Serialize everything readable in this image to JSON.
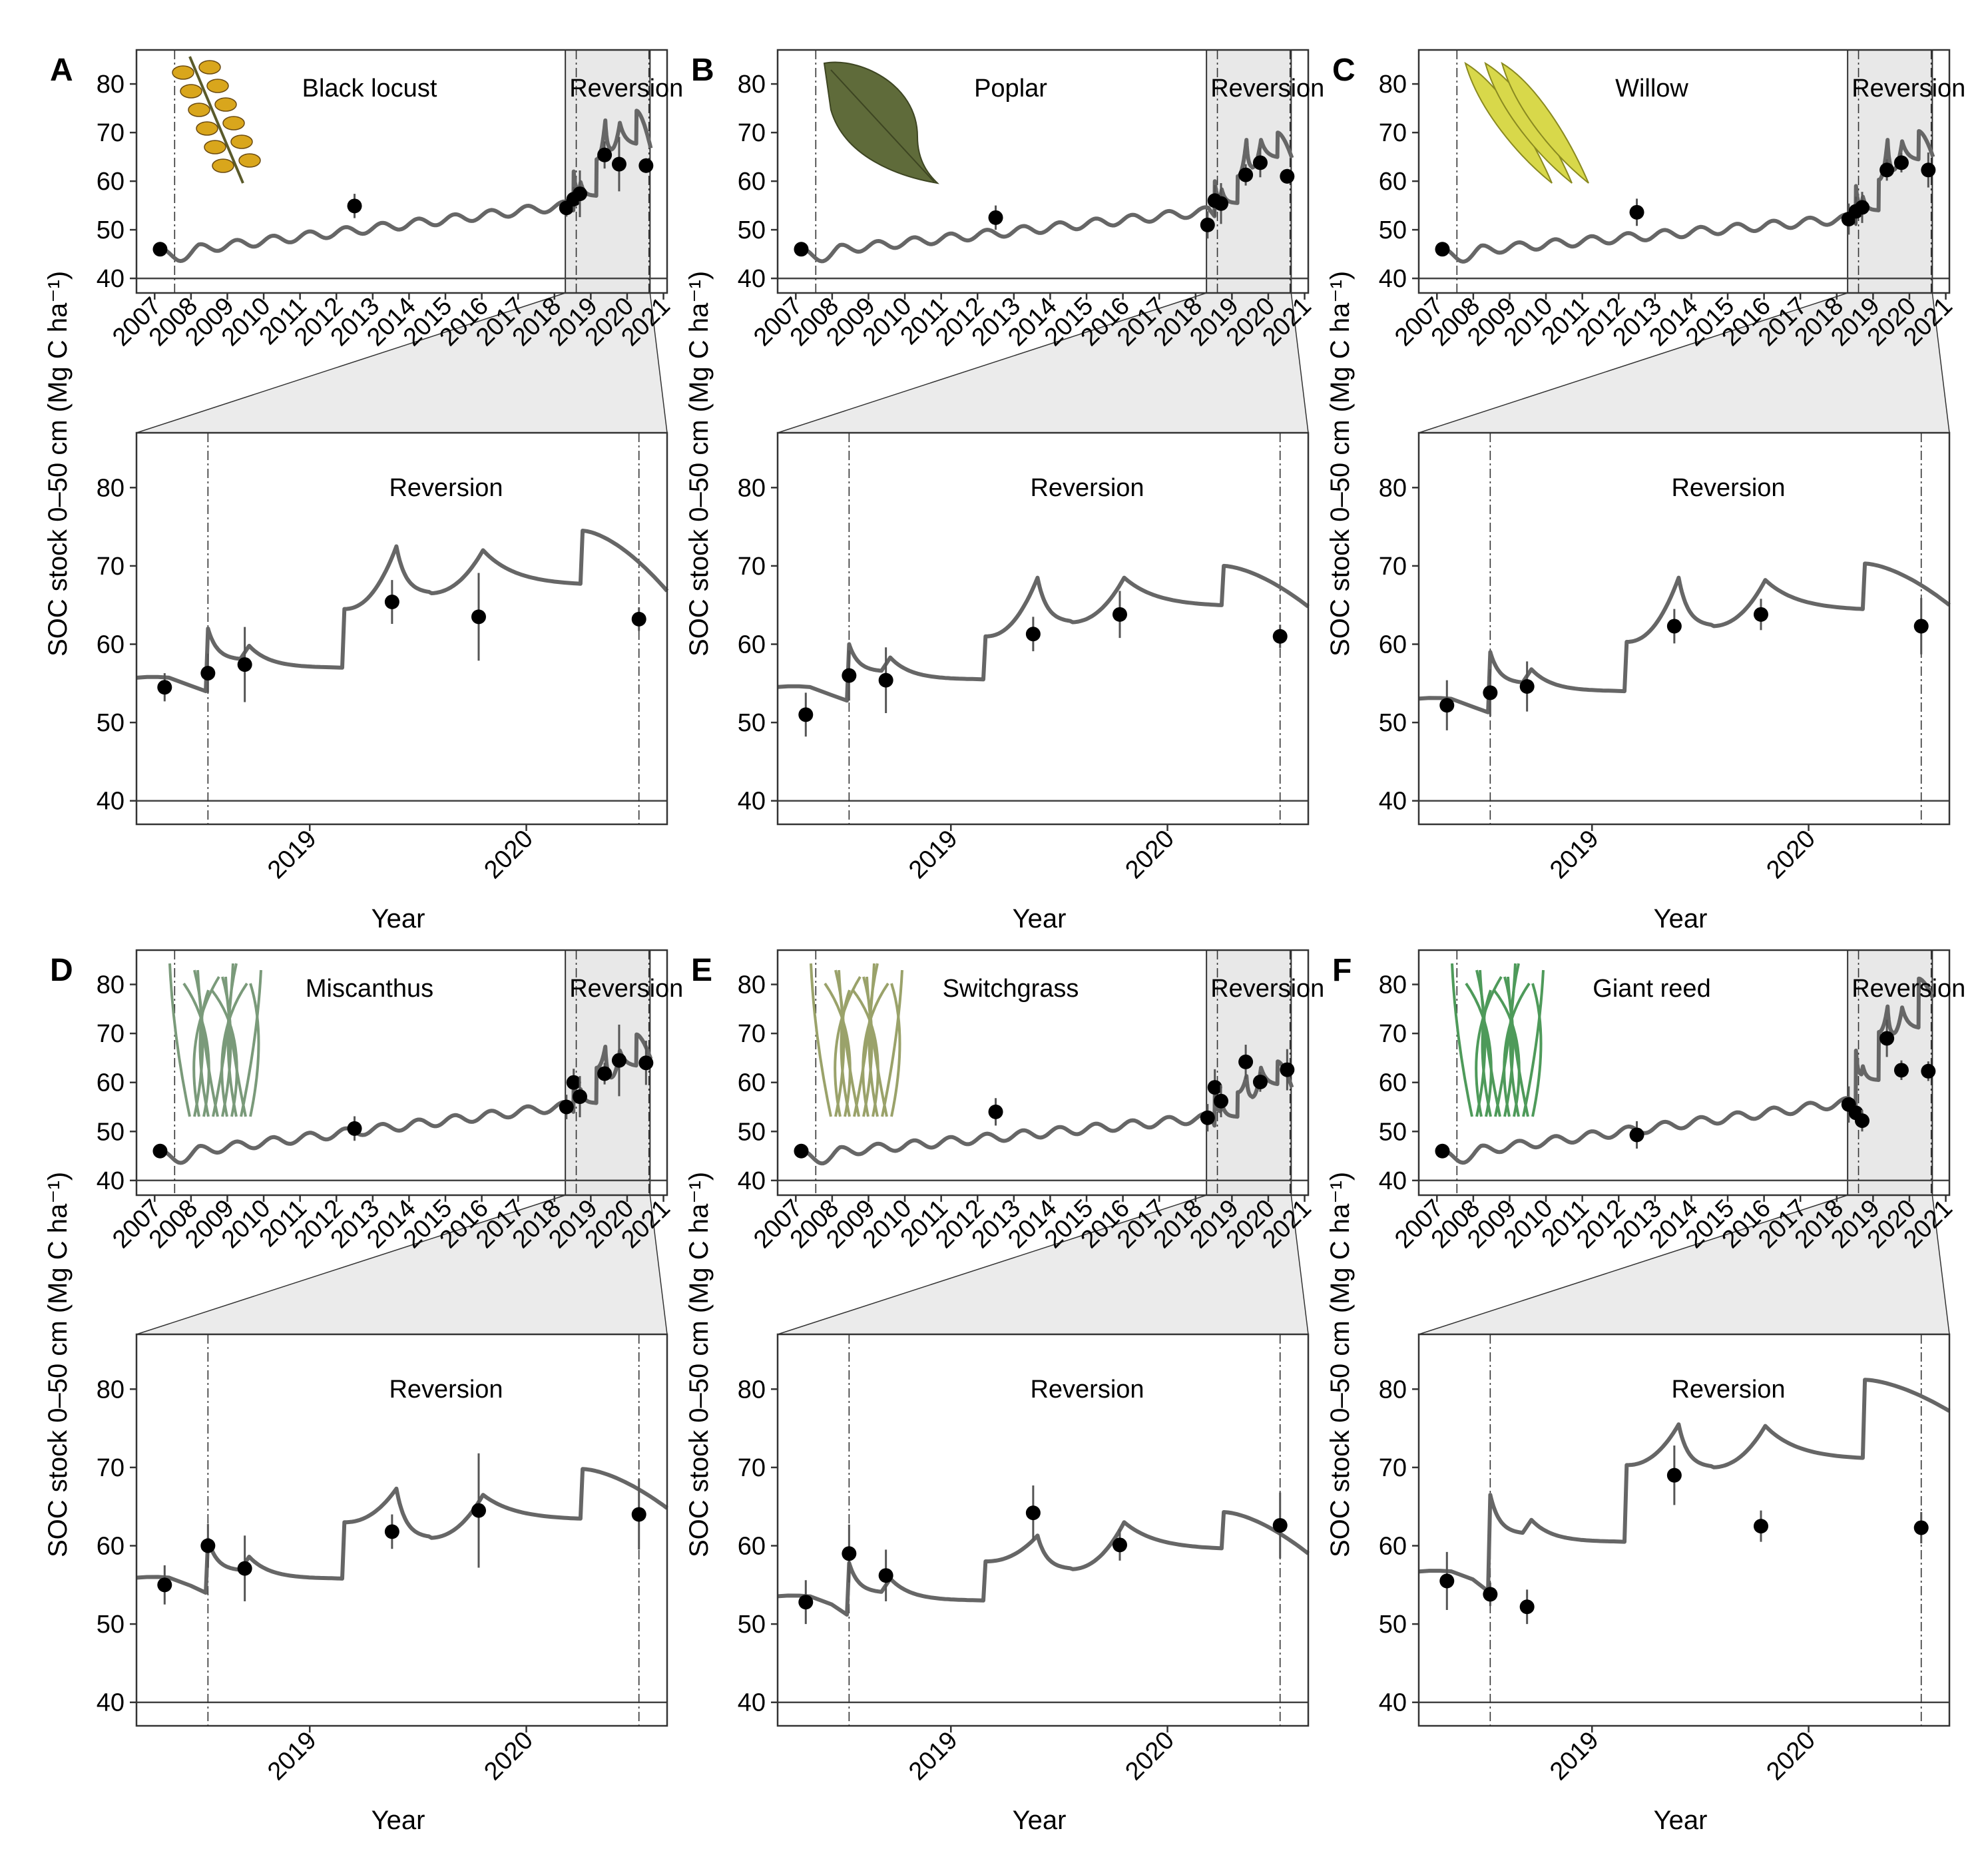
{
  "figure": {
    "y_axis_title": "SOC stock 0–50 cm  (Mg C ha⁻¹)",
    "x_axis_title": "Year",
    "reversion_label": "Reversion"
  },
  "chart_data": [
    {
      "type": "line",
      "panel": "A",
      "species": "Black locust",
      "icon": "black-locust-leaf-icon",
      "icon_color": "#d9a61c",
      "ylim": [
        37,
        87
      ],
      "yticks": [
        40,
        50,
        60,
        70,
        80
      ],
      "reference_line": 40,
      "overview": {
        "xlim": [
          2006.5,
          2021.1
        ],
        "xticks": [
          2007,
          2008,
          2009,
          2010,
          2011,
          2012,
          2013,
          2014,
          2015,
          2016,
          2017,
          2018,
          2019,
          2020,
          2021
        ],
        "vlines": [
          2007.55,
          2018.6,
          2020.6
        ],
        "reversion_band": [
          2018.3,
          2020.63
        ]
      },
      "zoom": {
        "xlim": [
          2018.2,
          2020.65
        ],
        "xticks": [
          2019,
          2020
        ],
        "vlines": [
          2018.53,
          2020.52
        ]
      },
      "observations": [
        {
          "x": 2007.15,
          "y": 46.0,
          "err": 0.8
        },
        {
          "x": 2012.5,
          "y": 54.9,
          "err": 2.5
        },
        {
          "x": 2018.33,
          "y": 54.5,
          "err": 1.8
        },
        {
          "x": 2018.53,
          "y": 56.3,
          "err": 2.5
        },
        {
          "x": 2018.7,
          "y": 57.4,
          "err": 4.8
        },
        {
          "x": 2019.38,
          "y": 65.4,
          "err": 2.8
        },
        {
          "x": 2019.78,
          "y": 63.5,
          "err": 5.6
        },
        {
          "x": 2020.52,
          "y": 63.2,
          "err": 1.5
        }
      ],
      "model": {
        "start": 46.0,
        "base_2018": 55.0,
        "pre_dip": 54.0,
        "post_step": 62.0,
        "trough": 57.0,
        "step_2019": 64.5,
        "peak_2019a": 72.5,
        "mid_2019": 66.5,
        "peak_2019b": 72.0,
        "plateau_2020": 67.5,
        "step_2020": 74.5,
        "end": 66.8
      }
    },
    {
      "type": "line",
      "panel": "B",
      "species": "Poplar",
      "icon": "poplar-leaf-icon",
      "icon_color": "#5f6b3a",
      "ylim": [
        37,
        87
      ],
      "yticks": [
        40,
        50,
        60,
        70,
        80
      ],
      "reference_line": 40,
      "overview": {
        "xlim": [
          2006.5,
          2021.1
        ],
        "xticks": [
          2007,
          2008,
          2009,
          2010,
          2011,
          2012,
          2013,
          2014,
          2015,
          2016,
          2017,
          2018,
          2019,
          2020,
          2021
        ],
        "vlines": [
          2007.55,
          2018.6,
          2020.6
        ],
        "reversion_band": [
          2018.3,
          2020.63
        ]
      },
      "zoom": {
        "xlim": [
          2018.2,
          2020.65
        ],
        "xticks": [
          2019,
          2020
        ],
        "vlines": [
          2018.53,
          2020.52
        ]
      },
      "observations": [
        {
          "x": 2007.15,
          "y": 46.0,
          "err": 0.8
        },
        {
          "x": 2012.5,
          "y": 52.5,
          "err": 2.5
        },
        {
          "x": 2018.33,
          "y": 51.0,
          "err": 2.8
        },
        {
          "x": 2018.53,
          "y": 56.0,
          "err": 3.2
        },
        {
          "x": 2018.7,
          "y": 55.4,
          "err": 4.2
        },
        {
          "x": 2019.38,
          "y": 61.3,
          "err": 2.2
        },
        {
          "x": 2019.78,
          "y": 63.8,
          "err": 3.0
        },
        {
          "x": 2020.52,
          "y": 61.0,
          "err": 1.5
        }
      ],
      "model": {
        "start": 46.0,
        "base_2018": 53.8,
        "pre_dip": 52.8,
        "post_step": 60.0,
        "trough": 55.5,
        "step_2019": 61.0,
        "peak_2019a": 68.5,
        "mid_2019": 62.8,
        "peak_2019b": 68.5,
        "plateau_2020": 64.8,
        "step_2020": 70.0,
        "end": 64.8
      }
    },
    {
      "type": "line",
      "panel": "C",
      "species": "Willow",
      "icon": "willow-leaf-icon",
      "icon_color": "#d8d84a",
      "ylim": [
        37,
        87
      ],
      "yticks": [
        40,
        50,
        60,
        70,
        80
      ],
      "reference_line": 40,
      "overview": {
        "xlim": [
          2006.5,
          2021.1
        ],
        "xticks": [
          2007,
          2008,
          2009,
          2010,
          2011,
          2012,
          2013,
          2014,
          2015,
          2016,
          2017,
          2018,
          2019,
          2020,
          2021
        ],
        "vlines": [
          2007.55,
          2018.6,
          2020.6
        ],
        "reversion_band": [
          2018.3,
          2020.63
        ]
      },
      "zoom": {
        "xlim": [
          2018.2,
          2020.65
        ],
        "xticks": [
          2019,
          2020
        ],
        "vlines": [
          2018.53,
          2020.52
        ]
      },
      "observations": [
        {
          "x": 2007.15,
          "y": 46.0,
          "err": 0.8
        },
        {
          "x": 2012.5,
          "y": 53.6,
          "err": 2.8
        },
        {
          "x": 2018.33,
          "y": 52.2,
          "err": 3.2
        },
        {
          "x": 2018.53,
          "y": 53.8,
          "err": 3.0
        },
        {
          "x": 2018.7,
          "y": 54.6,
          "err": 3.2
        },
        {
          "x": 2019.38,
          "y": 62.3,
          "err": 2.2
        },
        {
          "x": 2019.78,
          "y": 63.8,
          "err": 2.0
        },
        {
          "x": 2020.52,
          "y": 62.3,
          "err": 3.6
        }
      ],
      "model": {
        "start": 46.0,
        "base_2018": 52.3,
        "pre_dip": 51.3,
        "post_step": 59.0,
        "trough": 54.0,
        "step_2019": 60.3,
        "peak_2019a": 68.5,
        "mid_2019": 62.3,
        "peak_2019b": 68.2,
        "plateau_2020": 64.3,
        "step_2020": 70.3,
        "end": 65.0
      }
    },
    {
      "type": "line",
      "panel": "D",
      "species": "Miscanthus",
      "icon": "miscanthus-plant-icon",
      "icon_color": "#7a9a7a",
      "ylim": [
        37,
        87
      ],
      "yticks": [
        40,
        50,
        60,
        70,
        80
      ],
      "reference_line": 40,
      "overview": {
        "xlim": [
          2006.5,
          2021.1
        ],
        "xticks": [
          2007,
          2008,
          2009,
          2010,
          2011,
          2012,
          2013,
          2014,
          2015,
          2016,
          2017,
          2018,
          2019,
          2020,
          2021
        ],
        "vlines": [
          2007.55,
          2018.6,
          2020.6
        ],
        "reversion_band": [
          2018.3,
          2020.63
        ]
      },
      "zoom": {
        "xlim": [
          2018.2,
          2020.65
        ],
        "xticks": [
          2019,
          2020
        ],
        "vlines": [
          2018.53,
          2020.52
        ]
      },
      "observations": [
        {
          "x": 2007.15,
          "y": 46.0,
          "err": 0.8
        },
        {
          "x": 2012.5,
          "y": 50.6,
          "err": 2.5
        },
        {
          "x": 2018.33,
          "y": 55.0,
          "err": 2.5
        },
        {
          "x": 2018.53,
          "y": 60.0,
          "err": 2.8
        },
        {
          "x": 2018.7,
          "y": 57.1,
          "err": 4.2
        },
        {
          "x": 2019.38,
          "y": 61.8,
          "err": 2.2
        },
        {
          "x": 2019.78,
          "y": 64.5,
          "err": 7.3
        },
        {
          "x": 2020.52,
          "y": 64.0,
          "err": 4.5
        }
      ],
      "model": {
        "start": 46.0,
        "base_2018": 55.2,
        "pre_dip": 54.0,
        "post_step": 60.8,
        "trough": 55.8,
        "step_2019": 63.0,
        "peak_2019a": 67.3,
        "mid_2019": 61.0,
        "peak_2019b": 66.5,
        "plateau_2020": 63.3,
        "step_2020": 69.8,
        "end": 64.8
      }
    },
    {
      "type": "line",
      "panel": "E",
      "species": "Switchgrass",
      "icon": "switchgrass-plant-icon",
      "icon_color": "#9aa26a",
      "ylim": [
        37,
        87
      ],
      "yticks": [
        40,
        50,
        60,
        70,
        80
      ],
      "reference_line": 40,
      "overview": {
        "xlim": [
          2006.5,
          2021.1
        ],
        "xticks": [
          2007,
          2008,
          2009,
          2010,
          2011,
          2012,
          2013,
          2014,
          2015,
          2016,
          2017,
          2018,
          2019,
          2020,
          2021
        ],
        "vlines": [
          2007.55,
          2018.6,
          2020.6
        ],
        "reversion_band": [
          2018.3,
          2020.63
        ]
      },
      "zoom": {
        "xlim": [
          2018.2,
          2020.65
        ],
        "xticks": [
          2019,
          2020
        ],
        "vlines": [
          2018.53,
          2020.52
        ]
      },
      "observations": [
        {
          "x": 2007.15,
          "y": 46.0,
          "err": 0.8
        },
        {
          "x": 2012.5,
          "y": 54.0,
          "err": 2.8
        },
        {
          "x": 2018.33,
          "y": 52.8,
          "err": 2.8
        },
        {
          "x": 2018.53,
          "y": 59.0,
          "err": 3.7
        },
        {
          "x": 2018.7,
          "y": 56.2,
          "err": 3.3
        },
        {
          "x": 2019.38,
          "y": 64.2,
          "err": 3.5
        },
        {
          "x": 2019.78,
          "y": 60.1,
          "err": 2.0
        },
        {
          "x": 2020.52,
          "y": 62.6,
          "err": 4.2
        }
      ],
      "model": {
        "start": 46.0,
        "base_2018": 52.8,
        "pre_dip": 51.2,
        "post_step": 57.8,
        "trough": 53.0,
        "step_2019": 58.0,
        "peak_2019a": 61.3,
        "mid_2019": 57.0,
        "peak_2019b": 63.0,
        "plateau_2020": 59.5,
        "step_2020": 64.3,
        "end": 59.0
      }
    },
    {
      "type": "line",
      "panel": "F",
      "species": "Giant reed",
      "icon": "giant-reed-plant-icon",
      "icon_color": "#4e9a5a",
      "ylim": [
        37,
        87
      ],
      "yticks": [
        40,
        50,
        60,
        70,
        80
      ],
      "reference_line": 40,
      "overview": {
        "xlim": [
          2006.5,
          2021.1
        ],
        "xticks": [
          2007,
          2008,
          2009,
          2010,
          2011,
          2012,
          2013,
          2014,
          2015,
          2016,
          2017,
          2018,
          2019,
          2020,
          2021
        ],
        "vlines": [
          2007.55,
          2018.6,
          2020.6
        ],
        "reversion_band": [
          2018.3,
          2020.63
        ]
      },
      "zoom": {
        "xlim": [
          2018.2,
          2020.65
        ],
        "xticks": [
          2019,
          2020
        ],
        "vlines": [
          2018.53,
          2020.52
        ]
      },
      "observations": [
        {
          "x": 2007.15,
          "y": 46.0,
          "err": 0.8
        },
        {
          "x": 2012.5,
          "y": 49.3,
          "err": 2.8
        },
        {
          "x": 2018.33,
          "y": 55.5,
          "err": 3.7
        },
        {
          "x": 2018.53,
          "y": 53.8,
          "err": 1.5
        },
        {
          "x": 2018.7,
          "y": 52.2,
          "err": 2.2
        },
        {
          "x": 2019.38,
          "y": 69.0,
          "err": 3.8
        },
        {
          "x": 2019.78,
          "y": 62.5,
          "err": 2.0
        },
        {
          "x": 2020.52,
          "y": 62.3,
          "err": 2.0
        }
      ],
      "model": {
        "start": 46.0,
        "base_2018": 56.0,
        "pre_dip": 54.2,
        "post_step": 66.5,
        "trough": 60.5,
        "step_2019": 70.3,
        "peak_2019a": 75.5,
        "mid_2019": 70.0,
        "peak_2019b": 75.3,
        "plateau_2020": 71.0,
        "step_2020": 81.2,
        "end": 77.2
      }
    }
  ]
}
